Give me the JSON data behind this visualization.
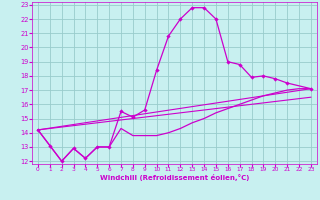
{
  "xlabel": "Windchill (Refroidissement éolien,°C)",
  "background_color": "#c8f0f0",
  "grid_color": "#99cccc",
  "line_color": "#cc00cc",
  "xlim": [
    -0.5,
    23.5
  ],
  "ylim": [
    11.8,
    23.2
  ],
  "yticks": [
    12,
    13,
    14,
    15,
    16,
    17,
    18,
    19,
    20,
    21,
    22,
    23
  ],
  "xticks": [
    0,
    1,
    2,
    3,
    4,
    5,
    6,
    7,
    8,
    9,
    10,
    11,
    12,
    13,
    14,
    15,
    16,
    17,
    18,
    19,
    20,
    21,
    22,
    23
  ],
  "main_curve": {
    "x": [
      0,
      1,
      2,
      3,
      4,
      5,
      6,
      7,
      8,
      9,
      10,
      11,
      12,
      13,
      14,
      15,
      16,
      17,
      18,
      19,
      20,
      21,
      23
    ],
    "y": [
      14.2,
      13.1,
      12.0,
      12.9,
      12.2,
      13.0,
      13.0,
      15.5,
      15.1,
      15.6,
      18.4,
      20.8,
      22.0,
      22.8,
      22.8,
      22.0,
      19.0,
      18.8,
      17.9,
      18.0,
      17.8,
      17.5,
      17.1
    ]
  },
  "lower_curve": {
    "x": [
      0,
      1,
      2,
      3,
      4,
      5,
      6,
      7,
      8,
      9,
      10,
      11,
      12,
      13,
      14,
      15,
      16,
      17,
      18,
      19,
      20,
      21,
      22,
      23
    ],
    "y": [
      14.2,
      13.1,
      12.0,
      12.9,
      12.2,
      13.0,
      13.0,
      14.3,
      13.8,
      13.8,
      13.8,
      14.0,
      14.3,
      14.7,
      15.0,
      15.4,
      15.7,
      16.0,
      16.3,
      16.6,
      16.8,
      17.0,
      17.1,
      17.1
    ]
  },
  "line1": {
    "x": [
      0,
      23
    ],
    "y": [
      14.2,
      17.1
    ]
  },
  "line2": {
    "x": [
      0,
      23
    ],
    "y": [
      14.2,
      16.5
    ]
  }
}
